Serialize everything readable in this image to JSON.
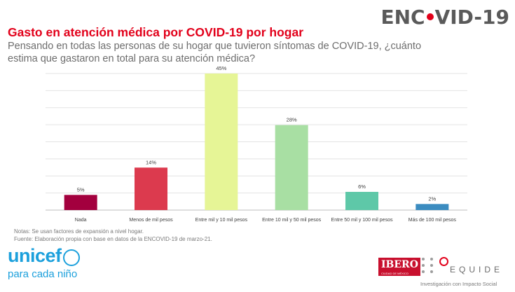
{
  "header": {
    "brand": "ENC VID-19",
    "brand_left": "ENC",
    "brand_right": "VID-19"
  },
  "chart_data": {
    "type": "bar",
    "title": "Gasto en atención médica por COVID-19 por hogar",
    "subtitle": "Pensando en todas las personas de su hogar que tuvieron síntomas de COVID-19, ¿cuánto estima que gastaron en total para su atención médica?",
    "categories": [
      "Nada",
      "Menos de mil pesos",
      "Entre mil y 10 mil pesos",
      "Entre 10 mil y 50 mil pesos",
      "Entre 50 mil y 100 mil pesos",
      "Más de 100 mil pesos"
    ],
    "values": [
      5,
      14,
      45,
      28,
      6,
      2
    ],
    "data_labels": [
      "5%",
      "14%",
      "45%",
      "28%",
      "6%",
      "2%"
    ],
    "colors": [
      "#a3003e",
      "#dc3a4e",
      "#e6f596",
      "#a8dfa3",
      "#5ec8a8",
      "#3b8cc0"
    ],
    "unit": "%",
    "ylim": [
      0,
      45
    ],
    "grid": true,
    "legend": "none",
    "xlabel": "",
    "ylabel": ""
  },
  "notes": {
    "line1": "Notas: Se usan factores de expansión a nivel hogar.",
    "line2": "Fuente: Elaboración propia con base en datos de la ENCOVID-19 de marzo-21."
  },
  "footer": {
    "unicef_word": "unicef",
    "unicef_tagline": "para cada niño",
    "ibero": "IBERO",
    "ibero_sub": "CIUDAD DE MÉXICO",
    "equide": "EQUIDE",
    "equide_tagline": "Investigación con Impacto Social"
  }
}
